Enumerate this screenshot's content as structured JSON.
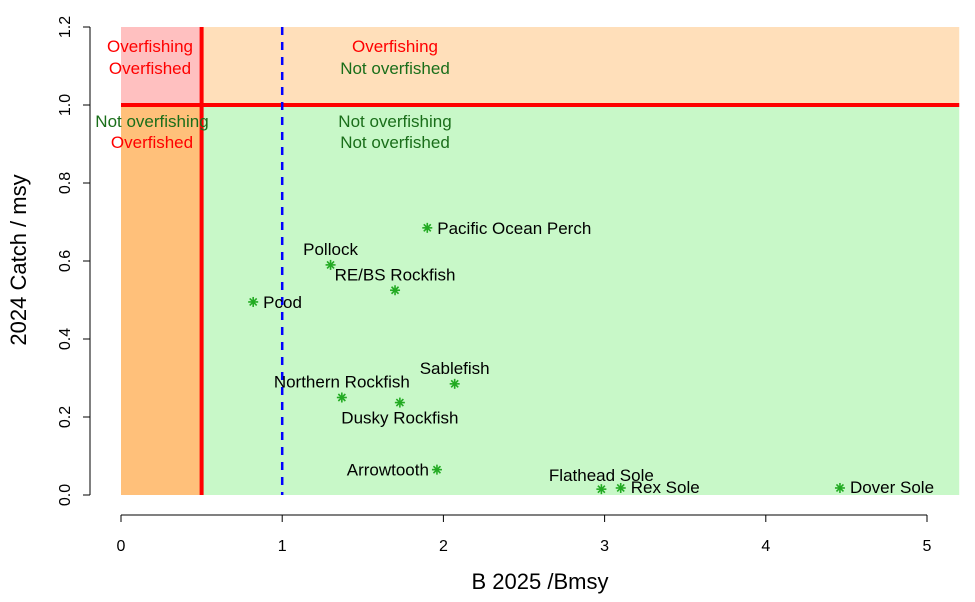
{
  "chart_data": {
    "type": "scatter",
    "title": "",
    "xlabel": "B 2025 /Bmsy",
    "ylabel": "2024 Catch / msy",
    "xlim": [
      0,
      5.2
    ],
    "ylim": [
      0,
      1.2
    ],
    "xticks": [
      "0",
      "1",
      "2",
      "3",
      "4",
      "5"
    ],
    "yticks": [
      "0.0",
      "0.2",
      "0.4",
      "0.6",
      "0.8",
      "1.0",
      "1.2"
    ],
    "grid": false,
    "thresholds": {
      "b_ratio": 0.5,
      "catch_ratio": 1.0,
      "reference_b": 1.0
    },
    "quadrant_labels": [
      {
        "line1": "Overfishing",
        "line2": "Overfished"
      },
      {
        "line1": "Overfishing",
        "line2": "Not overfished"
      },
      {
        "line1": "Not overfishing",
        "line2": "Overfished"
      },
      {
        "line1": "Not overfishing",
        "line2": "Not overfished"
      }
    ],
    "points": [
      {
        "name": "Pacific Ocean Perch",
        "x": 1.9,
        "y": 0.685
      },
      {
        "name": "Pollock",
        "x": 1.3,
        "y": 0.59
      },
      {
        "name": "RE/BS Rockfish",
        "x": 1.7,
        "y": 0.525
      },
      {
        "name": "Pcod",
        "x": 0.82,
        "y": 0.495
      },
      {
        "name": "Sablefish",
        "x": 2.07,
        "y": 0.285
      },
      {
        "name": "Northern Rockfish",
        "x": 1.37,
        "y": 0.25
      },
      {
        "name": "Dusky Rockfish",
        "x": 1.73,
        "y": 0.237
      },
      {
        "name": "Arrowtooth",
        "x": 1.96,
        "y": 0.065
      },
      {
        "name": "Flathead Sole",
        "x": 2.98,
        "y": 0.015
      },
      {
        "name": "Rex Sole",
        "x": 3.1,
        "y": 0.018
      },
      {
        "name": "Dover Sole",
        "x": 4.46,
        "y": 0.018
      }
    ],
    "colors": {
      "overfishing_overfished": "#ffc0c0",
      "overfishing_not_overfished": "#ffdfba",
      "not_overfishing_overfished": "#ffc07a",
      "not_overfishing_not_overfished": "#c8f8c8",
      "threshold_line": "#ff0000",
      "reference_line": "#0000ff",
      "point": "#22aa22",
      "label_red": "#ff0000",
      "label_green": "#1a6e1a"
    }
  }
}
